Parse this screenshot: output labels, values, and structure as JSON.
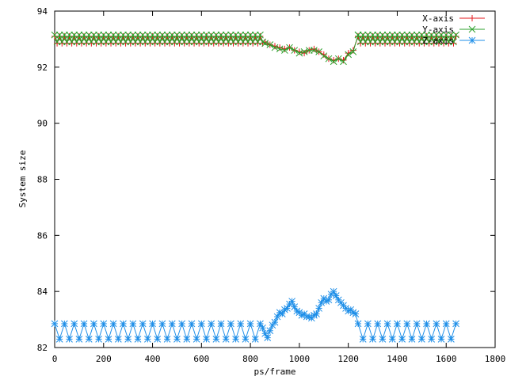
{
  "chart_data": {
    "type": "scatter",
    "xlabel": "ps/frame",
    "ylabel": "System size",
    "xlim": [
      0,
      1800
    ],
    "ylim": [
      82,
      94
    ],
    "xticks": [
      "0",
      "200",
      "400",
      "600",
      "800",
      "1000",
      "1200",
      "1400",
      "1600",
      "1800"
    ],
    "yticks": [
      "82",
      "84",
      "86",
      "88",
      "90",
      "92",
      "94"
    ],
    "grid": false,
    "legend_position": "top-right",
    "series": [
      {
        "name": "X-axis",
        "color": "#e41a1c",
        "marker": "plus",
        "pattern": {
          "start": 0,
          "end": 850,
          "step": 10,
          "high": 93.1,
          "low": 92.85
        },
        "x": [
          860,
          880,
          900,
          920,
          940,
          960,
          980,
          1000,
          1020,
          1040,
          1060,
          1080,
          1100,
          1120,
          1140,
          1160,
          1180,
          1200,
          1220,
          1240
        ],
        "y": [
          92.9,
          92.8,
          92.75,
          92.7,
          92.65,
          92.7,
          92.6,
          92.55,
          92.5,
          92.6,
          92.65,
          92.55,
          92.45,
          92.3,
          92.25,
          92.3,
          92.25,
          92.5,
          92.6,
          93.1
        ],
        "pattern2": {
          "start": 1240,
          "end": 1640,
          "step": 10,
          "high": 93.1,
          "low": 92.85
        }
      },
      {
        "name": "Y-axis",
        "color": "#2ca02c",
        "marker": "cross",
        "pattern": {
          "start": 0,
          "end": 850,
          "step": 10,
          "high": 93.15,
          "low": 92.9
        },
        "x": [
          860,
          880,
          900,
          920,
          940,
          960,
          980,
          1000,
          1020,
          1040,
          1060,
          1080,
          1100,
          1120,
          1140,
          1160,
          1180,
          1200,
          1220,
          1240
        ],
        "y": [
          92.85,
          92.8,
          92.7,
          92.65,
          92.6,
          92.7,
          92.6,
          92.5,
          92.55,
          92.6,
          92.6,
          92.55,
          92.4,
          92.3,
          92.2,
          92.3,
          92.2,
          92.45,
          92.55,
          93.15
        ],
        "pattern2": {
          "start": 1240,
          "end": 1640,
          "step": 10,
          "high": 93.15,
          "low": 92.9
        }
      },
      {
        "name": "Z-axis",
        "color": "#1f8fe8",
        "marker": "star",
        "pattern": {
          "start": 0,
          "end": 850,
          "step": 20,
          "high": 82.85,
          "low": 82.3
        },
        "x": [
          850,
          860,
          870,
          880,
          890,
          900,
          910,
          920,
          930,
          940,
          950,
          960,
          970,
          980,
          990,
          1000,
          1010,
          1020,
          1030,
          1040,
          1050,
          1060,
          1070,
          1080,
          1090,
          1100,
          1110,
          1120,
          1130,
          1140,
          1150,
          1160,
          1170,
          1180,
          1190,
          1200,
          1210,
          1220,
          1230
        ],
        "y": [
          82.7,
          82.5,
          82.35,
          82.6,
          82.8,
          82.9,
          83.1,
          83.25,
          83.2,
          83.35,
          83.4,
          83.55,
          83.65,
          83.45,
          83.3,
          83.25,
          83.15,
          83.2,
          83.1,
          83.1,
          83.05,
          83.15,
          83.2,
          83.4,
          83.6,
          83.75,
          83.65,
          83.7,
          83.9,
          84.0,
          83.85,
          83.7,
          83.6,
          83.5,
          83.4,
          83.3,
          83.35,
          83.25,
          83.2
        ],
        "pattern2": {
          "start": 1240,
          "end": 1640,
          "step": 20,
          "high": 82.85,
          "low": 82.3
        }
      }
    ]
  }
}
